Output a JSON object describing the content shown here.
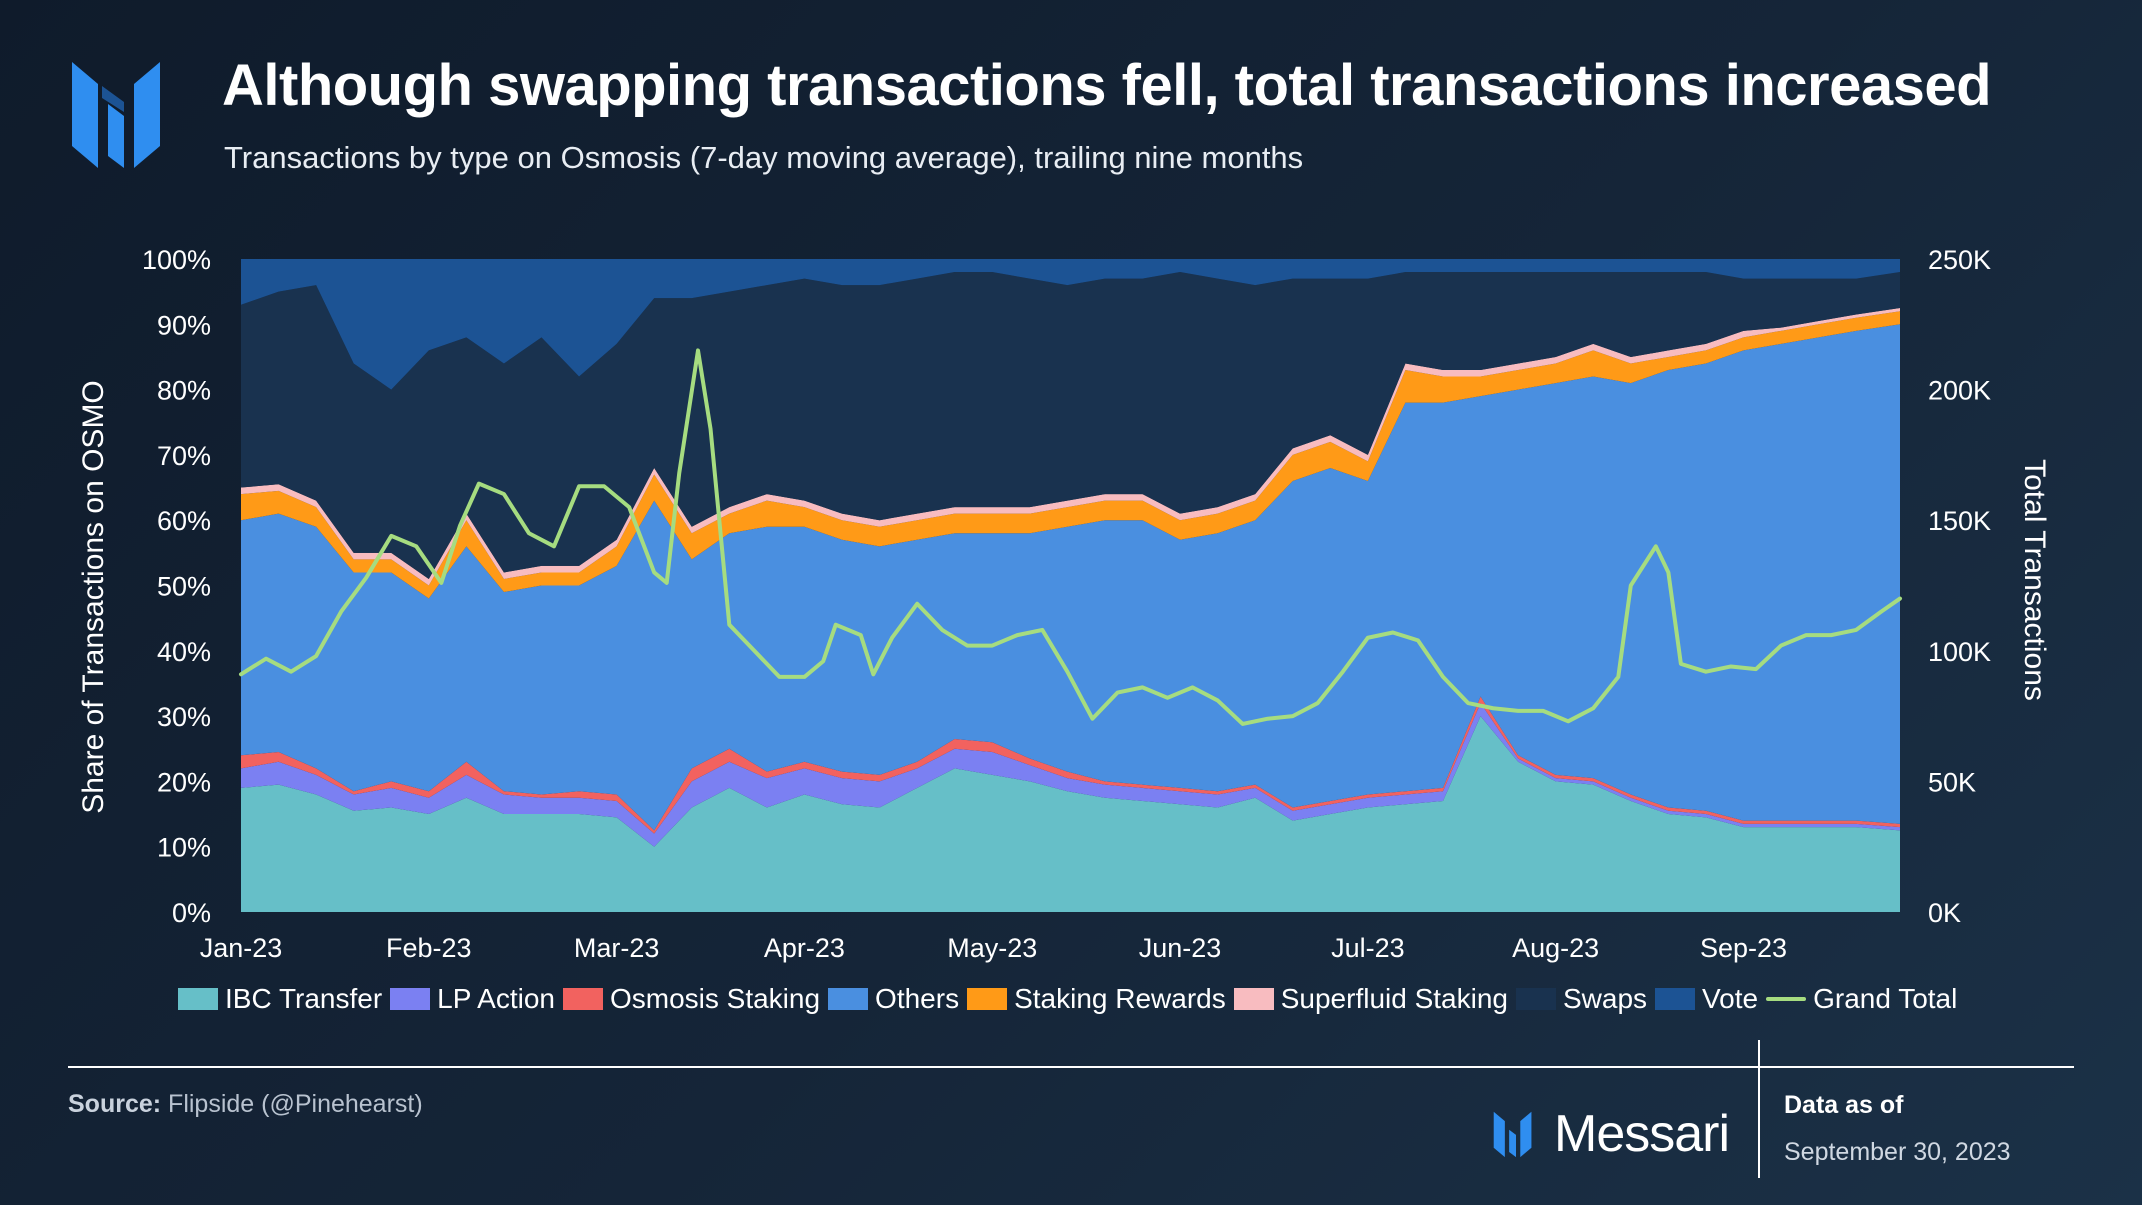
{
  "header": {
    "title": "Although swapping transactions fell, total transactions increased",
    "subtitle": "Transactions by type on Osmosis (7-day moving average), trailing nine months"
  },
  "footer": {
    "source_label": "Source:",
    "source_text": "Flipside (@Pinehearst)",
    "brand": "Messari",
    "asof_label": "Data as of",
    "asof_date": "September 30, 2023"
  },
  "colors": {
    "ibc": "#66bfc8",
    "lp": "#7b80f2",
    "osmo_staking": "#f2625f",
    "others": "#4a8fe0",
    "staking_rewards": "#ff9a17",
    "superfluid": "#f8bcc0",
    "swaps": "#19324f",
    "vote": "#1c5394",
    "grand_total": "#a6dc80",
    "brand_blue": "#2f8ef0"
  },
  "chart_data": {
    "type": "area",
    "stacked_percent": true,
    "ylabel": "Share of Transactions on OSMO",
    "y2label": "Total Transactions",
    "ylim": [
      0,
      100
    ],
    "y2lim": [
      0,
      250000
    ],
    "yticks": [
      "0%",
      "10%",
      "20%",
      "30%",
      "40%",
      "50%",
      "60%",
      "70%",
      "80%",
      "90%",
      "100%"
    ],
    "y2ticks": [
      "0K",
      "50K",
      "100K",
      "150K",
      "200K",
      "250K"
    ],
    "xlim": [
      0,
      265
    ],
    "xticks": [
      {
        "label": "Jan-23",
        "day": 0
      },
      {
        "label": "Feb-23",
        "day": 30
      },
      {
        "label": "Mar-23",
        "day": 60
      },
      {
        "label": "Apr-23",
        "day": 90
      },
      {
        "label": "May-23",
        "day": 120
      },
      {
        "label": "Jun-23",
        "day": 150
      },
      {
        "label": "Jul-23",
        "day": 180
      },
      {
        "label": "Aug-23",
        "day": 210
      },
      {
        "label": "Sep-23",
        "day": 240
      }
    ],
    "x_days": [
      0,
      6,
      12,
      18,
      24,
      30,
      36,
      42,
      48,
      54,
      60,
      66,
      72,
      78,
      84,
      90,
      96,
      102,
      108,
      114,
      120,
      126,
      132,
      138,
      144,
      150,
      156,
      162,
      168,
      174,
      180,
      186,
      192,
      198,
      204,
      210,
      216,
      222,
      228,
      234,
      240,
      246,
      252,
      258,
      265
    ],
    "series": [
      {
        "name": "IBC Transfer",
        "key": "ibc",
        "cumulative_top": [
          19,
          19.5,
          18,
          15.5,
          16,
          15,
          17.5,
          15,
          15,
          15,
          14.5,
          10,
          16,
          19,
          16,
          18,
          16.5,
          16,
          19,
          22,
          21,
          20,
          18.5,
          17.5,
          17,
          16.5,
          16,
          17.5,
          14,
          15,
          16,
          16.5,
          17,
          30,
          23,
          20,
          19.5,
          17,
          15,
          14.5,
          13,
          13,
          13,
          13,
          12.5
        ]
      },
      {
        "name": "LP Action",
        "key": "lp",
        "cumulative_top": [
          22,
          23,
          21,
          18,
          19,
          17.5,
          21,
          18,
          17.5,
          17.5,
          17,
          12,
          20,
          23,
          20.5,
          22,
          20.5,
          20,
          22,
          25,
          24.5,
          22.5,
          20.5,
          19.5,
          19,
          18.5,
          18,
          19,
          15.5,
          16.5,
          17.5,
          18,
          18.5,
          32,
          23.5,
          20.5,
          20,
          17.5,
          15.5,
          15,
          13.5,
          13.5,
          13.5,
          13.5,
          13
        ]
      },
      {
        "name": "Osmosis Staking",
        "key": "osmo_staking",
        "cumulative_top": [
          24,
          24.5,
          22,
          18.5,
          20,
          18.5,
          23,
          18.5,
          18,
          18.5,
          18,
          12.5,
          22,
          25,
          21.5,
          23,
          21.5,
          21,
          23,
          26.5,
          26,
          23.5,
          21.5,
          20,
          19.5,
          19,
          18.5,
          19.5,
          16,
          17,
          18,
          18.5,
          19,
          33,
          24,
          21,
          20.5,
          18,
          16,
          15.5,
          14,
          14,
          14,
          14,
          13.5
        ]
      },
      {
        "name": "Others",
        "key": "others",
        "cumulative_top": [
          60,
          61,
          59,
          52,
          52,
          48,
          56,
          49,
          50,
          50,
          53,
          63,
          54,
          58,
          59,
          59,
          57,
          56,
          57,
          58,
          58,
          58,
          59,
          60,
          60,
          57,
          58,
          60,
          66,
          68,
          66,
          78,
          78,
          79,
          80,
          81,
          82,
          81,
          83,
          84,
          86,
          87,
          88,
          89,
          90
        ]
      },
      {
        "name": "Staking Rewards",
        "key": "staking_rewards",
        "cumulative_top": [
          64,
          64.5,
          62,
          54,
          54,
          50,
          60,
          51,
          52,
          52,
          56,
          67,
          58,
          61,
          63,
          62,
          60,
          59,
          60,
          61,
          61,
          61,
          62,
          63,
          63,
          60,
          61,
          63,
          70,
          72,
          69,
          83,
          82,
          82,
          83,
          84,
          86,
          84,
          85,
          86,
          88,
          89,
          90,
          91,
          92
        ]
      },
      {
        "name": "Superfluid Staking",
        "key": "superfluid",
        "cumulative_top": [
          65,
          65.5,
          63,
          55,
          55,
          51,
          61,
          52,
          53,
          53,
          57,
          68,
          59,
          62,
          64,
          63,
          61,
          60,
          61,
          62,
          62,
          62,
          63,
          64,
          64,
          61,
          62,
          64,
          71,
          73,
          70,
          84,
          83,
          83,
          84,
          85,
          87,
          85,
          86,
          87,
          89,
          89.5,
          90.5,
          91.5,
          92.5
        ]
      },
      {
        "name": "Swaps",
        "key": "swaps",
        "cumulative_top": [
          93,
          95,
          96,
          84,
          80,
          86,
          88,
          84,
          88,
          82,
          87,
          94,
          94,
          95,
          96,
          97,
          96,
          96,
          97,
          98,
          98,
          97,
          96,
          97,
          97,
          98,
          97,
          96,
          97,
          97,
          97,
          98,
          98,
          98,
          98,
          98,
          98,
          98,
          98,
          98,
          97,
          97,
          97,
          97,
          98
        ]
      },
      {
        "name": "Vote",
        "key": "vote",
        "cumulative_top": [
          100,
          100,
          100,
          100,
          100,
          100,
          100,
          100,
          100,
          100,
          100,
          100,
          100,
          100,
          100,
          100,
          100,
          100,
          100,
          100,
          100,
          100,
          100,
          100,
          100,
          100,
          100,
          100,
          100,
          100,
          100,
          100,
          100,
          100,
          100,
          100,
          100,
          100,
          100,
          100,
          100,
          100,
          100,
          100,
          100
        ]
      }
    ],
    "grand_total": {
      "name": "Grand Total",
      "key": "grand_total",
      "points": [
        [
          0,
          91000
        ],
        [
          4,
          97000
        ],
        [
          8,
          92000
        ],
        [
          12,
          98000
        ],
        [
          16,
          115000
        ],
        [
          20,
          128000
        ],
        [
          24,
          144000
        ],
        [
          28,
          140000
        ],
        [
          32,
          126000
        ],
        [
          35,
          148000
        ],
        [
          38,
          164000
        ],
        [
          42,
          160000
        ],
        [
          46,
          145000
        ],
        [
          50,
          140000
        ],
        [
          54,
          163000
        ],
        [
          58,
          163000
        ],
        [
          62,
          155000
        ],
        [
          66,
          130000
        ],
        [
          68,
          126000
        ],
        [
          70,
          168000
        ],
        [
          73,
          215000
        ],
        [
          75,
          185000
        ],
        [
          78,
          110000
        ],
        [
          82,
          100000
        ],
        [
          86,
          90000
        ],
        [
          90,
          90000
        ],
        [
          93,
          96000
        ],
        [
          95,
          110000
        ],
        [
          99,
          106000
        ],
        [
          101,
          91000
        ],
        [
          104,
          105000
        ],
        [
          108,
          118000
        ],
        [
          112,
          108000
        ],
        [
          116,
          102000
        ],
        [
          120,
          102000
        ],
        [
          124,
          106000
        ],
        [
          128,
          108000
        ],
        [
          132,
          92000
        ],
        [
          136,
          74000
        ],
        [
          140,
          84000
        ],
        [
          144,
          86000
        ],
        [
          148,
          82000
        ],
        [
          152,
          86000
        ],
        [
          156,
          81000
        ],
        [
          160,
          72000
        ],
        [
          164,
          74000
        ],
        [
          168,
          75000
        ],
        [
          172,
          80000
        ],
        [
          176,
          92000
        ],
        [
          180,
          105000
        ],
        [
          184,
          107000
        ],
        [
          188,
          104000
        ],
        [
          192,
          90000
        ],
        [
          196,
          80000
        ],
        [
          200,
          78000
        ],
        [
          204,
          77000
        ],
        [
          208,
          77000
        ],
        [
          212,
          73000
        ],
        [
          216,
          78000
        ],
        [
          220,
          90000
        ],
        [
          222,
          125000
        ],
        [
          226,
          140000
        ],
        [
          228,
          130000
        ],
        [
          230,
          95000
        ],
        [
          234,
          92000
        ],
        [
          238,
          94000
        ],
        [
          242,
          93000
        ],
        [
          246,
          102000
        ],
        [
          250,
          106000
        ],
        [
          254,
          106000
        ],
        [
          258,
          108000
        ],
        [
          262,
          115000
        ],
        [
          265,
          120000
        ]
      ]
    },
    "legend": [
      "IBC Transfer",
      "LP Action",
      "Osmosis Staking",
      "Others",
      "Staking Rewards",
      "Superfluid Staking",
      "Swaps",
      "Vote",
      "Grand Total"
    ],
    "legend_position": "bottom",
    "grid": false
  }
}
